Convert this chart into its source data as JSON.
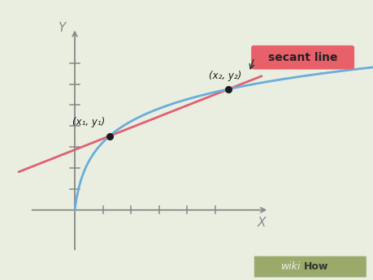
{
  "background_color": "#eaeee0",
  "axis_color": "#888888",
  "curve_color": "#6aacda",
  "secant_color": "#e06070",
  "point_color": "#1a1a1a",
  "label_box_color": "#e8606a",
  "label_text_color": "#222222",
  "arrow_color": "#333333",
  "secant_label": "secant line",
  "point1_label": "(x₁, y₁)",
  "point2_label": "(x₂, y₂)",
  "x_axis_label": "X",
  "y_axis_label": "Y",
  "fig_width": 4.6,
  "fig_height": 3.45,
  "dpi": 100,
  "wikihow_bg": "#9aaa6a",
  "wikihow_text1": "wiki",
  "wikihow_text2": "How",
  "wikihow_color1": "#eeeeee",
  "wikihow_color2": "#333333"
}
